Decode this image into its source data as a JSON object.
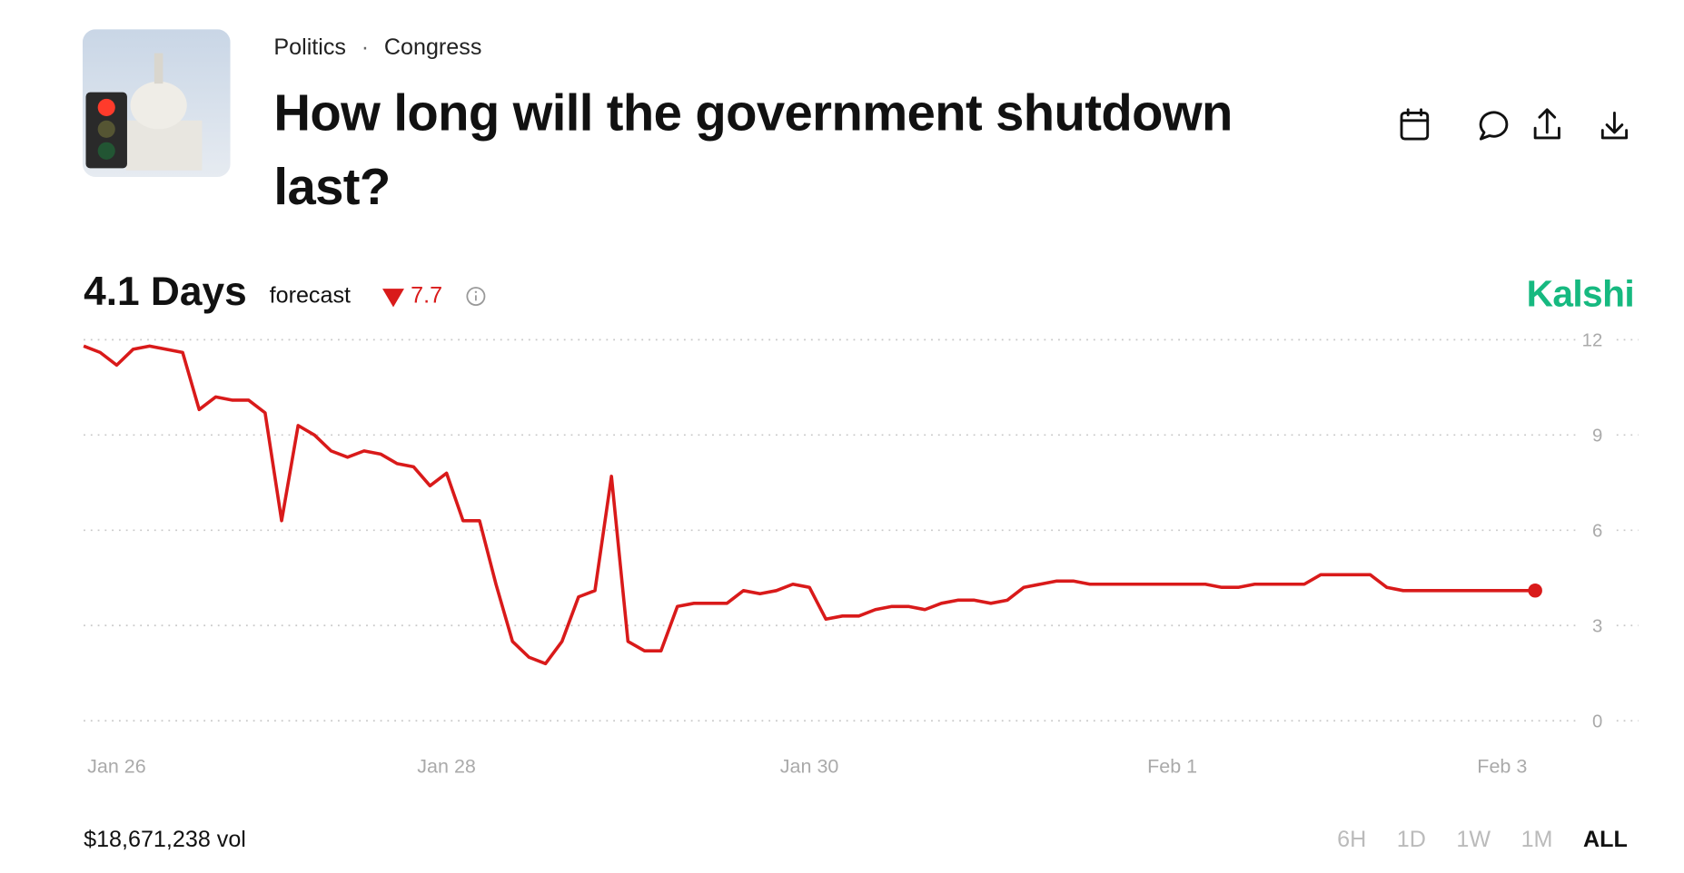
{
  "breadcrumb": [
    "Politics",
    "Congress"
  ],
  "title": "How long will the government shutdown last?",
  "forecast": {
    "value_text": "4.1 Days",
    "label": "forecast",
    "change": "7.7"
  },
  "brand": "Kalshi",
  "volume": "$18,671,238 vol",
  "ranges": [
    "6H",
    "1D",
    "1W",
    "1M",
    "ALL"
  ],
  "selected_range": "ALL",
  "chart_data": {
    "type": "line",
    "categories": [
      null,
      null,
      "Jan 26",
      null,
      null,
      null,
      null,
      null,
      null,
      null,
      null,
      null,
      null,
      null,
      null,
      null,
      null,
      null,
      null,
      null,
      null,
      null,
      "Jan 28",
      null,
      null,
      null,
      null,
      null,
      null,
      null,
      null,
      null,
      null,
      null,
      null,
      null,
      null,
      null,
      null,
      null,
      null,
      null,
      null,
      null,
      "Jan 30",
      null,
      null,
      null,
      null,
      null,
      null,
      null,
      null,
      null,
      null,
      null,
      null,
      null,
      null,
      null,
      null,
      null,
      null,
      null,
      null,
      null,
      "Feb 1",
      null,
      null,
      null,
      null,
      null,
      null,
      null,
      null,
      null,
      null,
      null,
      null,
      null,
      null,
      null,
      null,
      null,
      null,
      null,
      "Feb 3",
      null,
      null
    ],
    "series": [
      {
        "name": "Forecast",
        "color": "#d91a1a",
        "values": [
          11.8,
          11.6,
          11.2,
          11.7,
          11.8,
          11.7,
          11.6,
          9.8,
          10.2,
          10.1,
          10.1,
          9.7,
          6.3,
          9.3,
          9.0,
          8.5,
          8.3,
          8.5,
          8.4,
          8.1,
          8.0,
          7.4,
          7.8,
          6.3,
          6.3,
          4.3,
          2.5,
          2.0,
          1.8,
          2.5,
          3.9,
          4.1,
          7.7,
          2.5,
          2.2,
          2.2,
          3.6,
          3.7,
          3.7,
          3.7,
          4.1,
          4.0,
          4.1,
          4.3,
          4.2,
          3.2,
          3.3,
          3.3,
          3.5,
          3.6,
          3.6,
          3.5,
          3.7,
          3.8,
          3.8,
          3.7,
          3.8,
          4.2,
          4.3,
          4.4,
          4.4,
          4.3,
          4.3,
          4.3,
          4.3,
          4.3,
          4.3,
          4.3,
          4.3,
          4.2,
          4.2,
          4.3,
          4.3,
          4.3,
          4.3,
          4.6,
          4.6,
          4.6,
          4.6,
          4.2,
          4.1,
          4.1,
          4.1,
          4.1,
          4.1,
          4.1,
          4.1,
          4.1,
          4.1
        ]
      }
    ],
    "ylim": [
      0,
      12
    ],
    "yticks": [
      0,
      3,
      6,
      9,
      12
    ],
    "grid": true
  }
}
